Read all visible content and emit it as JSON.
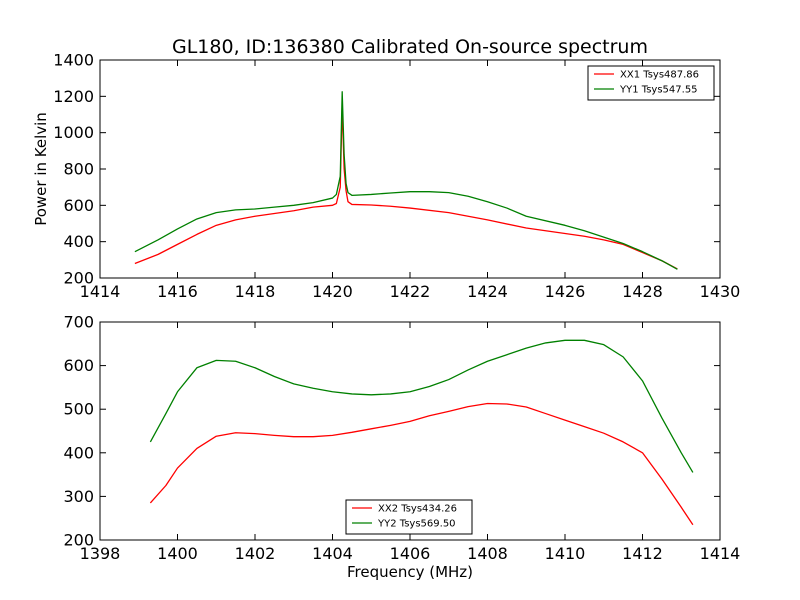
{
  "figure_title": "GL180, ID:136380 Calibrated On-source spectrum",
  "chart_data": [
    {
      "type": "line",
      "title": "GL180, ID:136380 Calibrated On-source spectrum",
      "xlabel": "",
      "ylabel": "Power in Kelvin",
      "xlim": [
        1414,
        1430
      ],
      "ylim": [
        200,
        1400
      ],
      "xticks": [
        1414,
        1416,
        1418,
        1420,
        1422,
        1424,
        1426,
        1428,
        1430
      ],
      "yticks": [
        200,
        400,
        600,
        800,
        1000,
        1200,
        1400
      ],
      "grid": false,
      "legend_position": "top-right",
      "series": [
        {
          "name": "XX1 Tsys487.86",
          "color": "#ff0000",
          "points": [
            [
              1414.9,
              280
            ],
            [
              1415.5,
              330
            ],
            [
              1416,
              385
            ],
            [
              1416.5,
              440
            ],
            [
              1417,
              490
            ],
            [
              1417.5,
              520
            ],
            [
              1418,
              540
            ],
            [
              1418.5,
              555
            ],
            [
              1419,
              570
            ],
            [
              1419.5,
              590
            ],
            [
              1420,
              600
            ],
            [
              1420.1,
              610
            ],
            [
              1420.2,
              700
            ],
            [
              1420.25,
              1150
            ],
            [
              1420.3,
              800
            ],
            [
              1420.35,
              680
            ],
            [
              1420.4,
              620
            ],
            [
              1420.5,
              605
            ],
            [
              1421,
              602
            ],
            [
              1421.5,
              595
            ],
            [
              1422,
              585
            ],
            [
              1423,
              560
            ],
            [
              1424,
              520
            ],
            [
              1425,
              475
            ],
            [
              1426,
              445
            ],
            [
              1426.5,
              430
            ],
            [
              1427,
              410
            ],
            [
              1427.5,
              385
            ],
            [
              1428,
              340
            ],
            [
              1428.5,
              295
            ],
            [
              1428.9,
              250
            ]
          ]
        },
        {
          "name": "YY1 Tsys547.55",
          "color": "#008000",
          "points": [
            [
              1414.9,
              345
            ],
            [
              1415.5,
              410
            ],
            [
              1416,
              470
            ],
            [
              1416.5,
              525
            ],
            [
              1417,
              560
            ],
            [
              1417.5,
              575
            ],
            [
              1418,
              580
            ],
            [
              1418.5,
              590
            ],
            [
              1419,
              600
            ],
            [
              1419.5,
              615
            ],
            [
              1420,
              640
            ],
            [
              1420.1,
              660
            ],
            [
              1420.2,
              760
            ],
            [
              1420.25,
              1225
            ],
            [
              1420.3,
              880
            ],
            [
              1420.35,
              720
            ],
            [
              1420.4,
              670
            ],
            [
              1420.5,
              655
            ],
            [
              1421,
              660
            ],
            [
              1421.5,
              668
            ],
            [
              1422,
              675
            ],
            [
              1422.5,
              675
            ],
            [
              1423,
              670
            ],
            [
              1423.5,
              650
            ],
            [
              1424,
              620
            ],
            [
              1424.5,
              585
            ],
            [
              1425,
              540
            ],
            [
              1426,
              490
            ],
            [
              1426.5,
              460
            ],
            [
              1427,
              425
            ],
            [
              1427.5,
              390
            ],
            [
              1428,
              345
            ],
            [
              1428.5,
              295
            ],
            [
              1428.9,
              248
            ]
          ]
        }
      ]
    },
    {
      "type": "line",
      "title": "",
      "xlabel": "Frequency (MHz)",
      "ylabel": "",
      "xlim": [
        1398,
        1414
      ],
      "ylim": [
        200,
        700
      ],
      "xticks": [
        1398,
        1400,
        1402,
        1404,
        1406,
        1408,
        1410,
        1412,
        1414
      ],
      "yticks": [
        200,
        300,
        400,
        500,
        600,
        700
      ],
      "grid": false,
      "legend_position": "bottom-center",
      "series": [
        {
          "name": "XX2 Tsys434.26",
          "color": "#ff0000",
          "points": [
            [
              1399.3,
              285
            ],
            [
              1399.7,
              325
            ],
            [
              1400,
              365
            ],
            [
              1400.5,
              410
            ],
            [
              1401,
              438
            ],
            [
              1401.5,
              446
            ],
            [
              1402,
              444
            ],
            [
              1402.5,
              440
            ],
            [
              1403,
              437
            ],
            [
              1403.5,
              437
            ],
            [
              1404,
              440
            ],
            [
              1404.5,
              447
            ],
            [
              1405,
              455
            ],
            [
              1405.5,
              463
            ],
            [
              1406,
              472
            ],
            [
              1406.5,
              485
            ],
            [
              1407,
              495
            ],
            [
              1407.5,
              506
            ],
            [
              1408,
              513
            ],
            [
              1408.5,
              512
            ],
            [
              1409,
              505
            ],
            [
              1409.5,
              490
            ],
            [
              1410,
              475
            ],
            [
              1410.5,
              460
            ],
            [
              1411,
              445
            ],
            [
              1411.5,
              425
            ],
            [
              1412,
              400
            ],
            [
              1412.5,
              340
            ],
            [
              1413,
              275
            ],
            [
              1413.3,
              235
            ]
          ]
        },
        {
          "name": "YY2 Tsys569.50",
          "color": "#008000",
          "points": [
            [
              1399.3,
              425
            ],
            [
              1399.7,
              490
            ],
            [
              1400,
              540
            ],
            [
              1400.5,
              595
            ],
            [
              1401,
              612
            ],
            [
              1401.5,
              610
            ],
            [
              1402,
              595
            ],
            [
              1402.5,
              575
            ],
            [
              1403,
              558
            ],
            [
              1403.5,
              548
            ],
            [
              1404,
              540
            ],
            [
              1404.5,
              535
            ],
            [
              1405,
              533
            ],
            [
              1405.5,
              535
            ],
            [
              1406,
              540
            ],
            [
              1406.5,
              552
            ],
            [
              1407,
              568
            ],
            [
              1407.5,
              590
            ],
            [
              1408,
              610
            ],
            [
              1408.5,
              625
            ],
            [
              1409,
              640
            ],
            [
              1409.5,
              652
            ],
            [
              1410,
              658
            ],
            [
              1410.5,
              658
            ],
            [
              1411,
              648
            ],
            [
              1411.5,
              620
            ],
            [
              1412,
              565
            ],
            [
              1412.5,
              480
            ],
            [
              1413,
              400
            ],
            [
              1413.3,
              355
            ]
          ]
        }
      ]
    }
  ]
}
